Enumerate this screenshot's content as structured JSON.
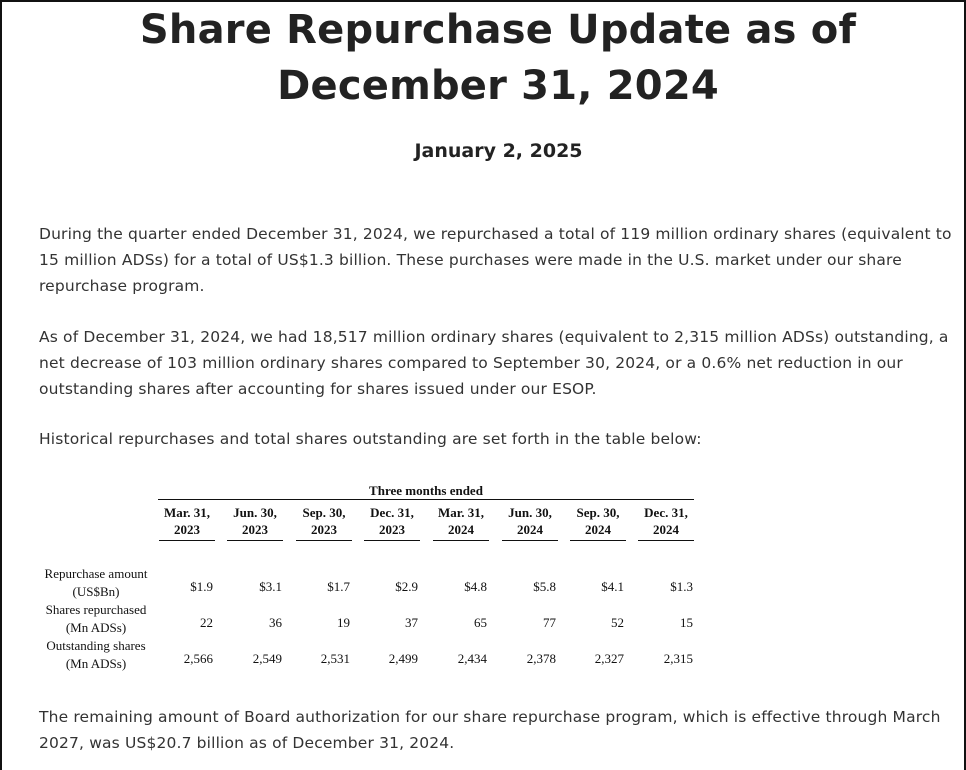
{
  "document": {
    "title": "Share Repurchase Update as of December 31, 2024",
    "date": "January 2, 2025",
    "paragraphs": [
      "During the quarter ended December 31, 2024, we repurchased a total of 119 million ordinary shares (equivalent to 15 million ADSs) for a total of US$1.3 billion. These purchases were made in the U.S. market under our share repurchase program.",
      "As of December 31, 2024, we had 18,517 million ordinary shares (equivalent to 2,315 million ADSs) outstanding, a net decrease of 103 million ordinary shares compared to September 30, 2024, or a 0.6% net reduction in our outstanding shares after accounting for shares issued under our ESOP.",
      "Historical repurchases and total shares outstanding are set forth in the table below:",
      "The remaining amount of Board authorization for our share repurchase program, which is effective through March 2027, was US$20.7 billion as of December 31, 2024."
    ]
  },
  "table": {
    "group_header": "Three months ended",
    "columns": [
      {
        "line1": "Mar. 31,",
        "line2": "2023"
      },
      {
        "line1": "Jun. 30,",
        "line2": "2023"
      },
      {
        "line1": "Sep. 30,",
        "line2": "2023"
      },
      {
        "line1": "Dec. 31,",
        "line2": "2023"
      },
      {
        "line1": "Mar. 31,",
        "line2": "2024"
      },
      {
        "line1": "Jun. 30,",
        "line2": "2024"
      },
      {
        "line1": "Sep. 30,",
        "line2": "2024"
      },
      {
        "line1": "Dec. 31,",
        "line2": "2024"
      }
    ],
    "rows": [
      {
        "label1": "Repurchase amount",
        "label2": "(US$Bn)",
        "values": [
          "$1.9",
          "$3.1",
          "$1.7",
          "$2.9",
          "$4.8",
          "$5.8",
          "$4.1",
          "$1.3"
        ]
      },
      {
        "label1": "Shares repurchased",
        "label2": "(Mn ADSs)",
        "values": [
          "22",
          "36",
          "19",
          "37",
          "65",
          "77",
          "52",
          "15"
        ]
      },
      {
        "label1": "Outstanding shares",
        "label2": "(Mn ADSs)",
        "values": [
          "2,566",
          "2,549",
          "2,531",
          "2,499",
          "2,434",
          "2,378",
          "2,327",
          "2,315"
        ]
      }
    ]
  }
}
